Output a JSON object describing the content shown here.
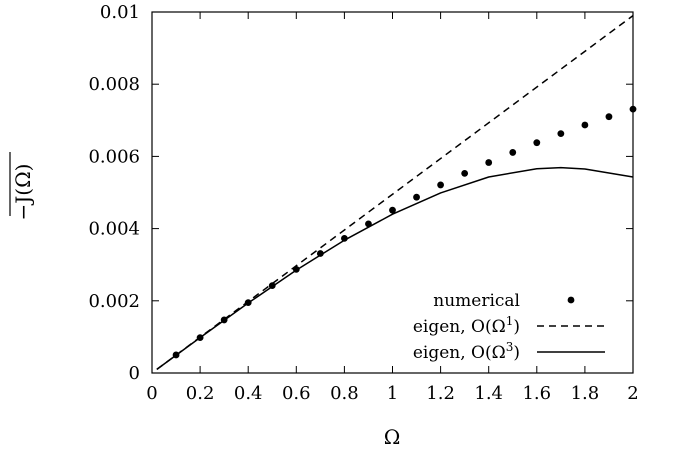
{
  "chart_data": {
    "type": "line",
    "title": "",
    "xlabel": "Ω",
    "ylabel": "−J(Ω)",
    "ylabel_overline": true,
    "xlim": [
      0,
      2
    ],
    "ylim": [
      0,
      0.01
    ],
    "x_ticks": [
      0,
      0.2,
      0.4,
      0.6,
      0.8,
      1,
      1.2,
      1.4,
      1.6,
      1.8,
      2
    ],
    "x_tick_labels": [
      "0",
      "0.2",
      "0.4",
      "0.6",
      "0.8",
      "1",
      "1.2",
      "1.4",
      "1.6",
      "1.8",
      "2"
    ],
    "y_ticks": [
      0,
      0.002,
      0.004,
      0.006,
      0.008,
      0.01
    ],
    "y_tick_labels": [
      "0",
      "0.002",
      "0.004",
      "0.006",
      "0.008",
      "0.01"
    ],
    "grid": false,
    "legend_position": "bottom-right",
    "series": [
      {
        "name": "numerical",
        "legend_label": "numerical",
        "style": "points",
        "color": "#000000",
        "x": [
          0.1,
          0.2,
          0.3,
          0.4,
          0.5,
          0.6,
          0.7,
          0.8,
          0.9,
          1.0,
          1.1,
          1.2,
          1.3,
          1.4,
          1.5,
          1.6,
          1.7,
          1.8,
          1.9,
          2.0
        ],
        "y": [
          0.0005,
          0.00098,
          0.00147,
          0.00195,
          0.00242,
          0.00287,
          0.00331,
          0.00373,
          0.00413,
          0.00451,
          0.00487,
          0.00521,
          0.00553,
          0.00583,
          0.00611,
          0.00638,
          0.00663,
          0.00687,
          0.0071,
          0.00731
        ]
      },
      {
        "name": "eigen, O(Ω¹)",
        "legend_label": "eigen, O(Ω",
        "legend_sup": "1",
        "legend_suffix": ")",
        "style": "dashed",
        "color": "#000000",
        "x": [
          0.02,
          2.0
        ],
        "y": [
          0.0001,
          0.0099
        ]
      },
      {
        "name": "eigen, O(Ω³)",
        "legend_label": "eigen, O(Ω",
        "legend_sup": "3",
        "legend_suffix": ")",
        "style": "solid",
        "color": "#000000",
        "x": [
          0.02,
          0.2,
          0.4,
          0.6,
          0.8,
          1.0,
          1.2,
          1.4,
          1.6,
          1.7,
          1.8,
          2.0
        ],
        "y": [
          0.0001,
          0.00098,
          0.00194,
          0.00285,
          0.00368,
          0.0044,
          0.00499,
          0.00543,
          0.00566,
          0.00569,
          0.00565,
          0.00543
        ]
      }
    ]
  }
}
